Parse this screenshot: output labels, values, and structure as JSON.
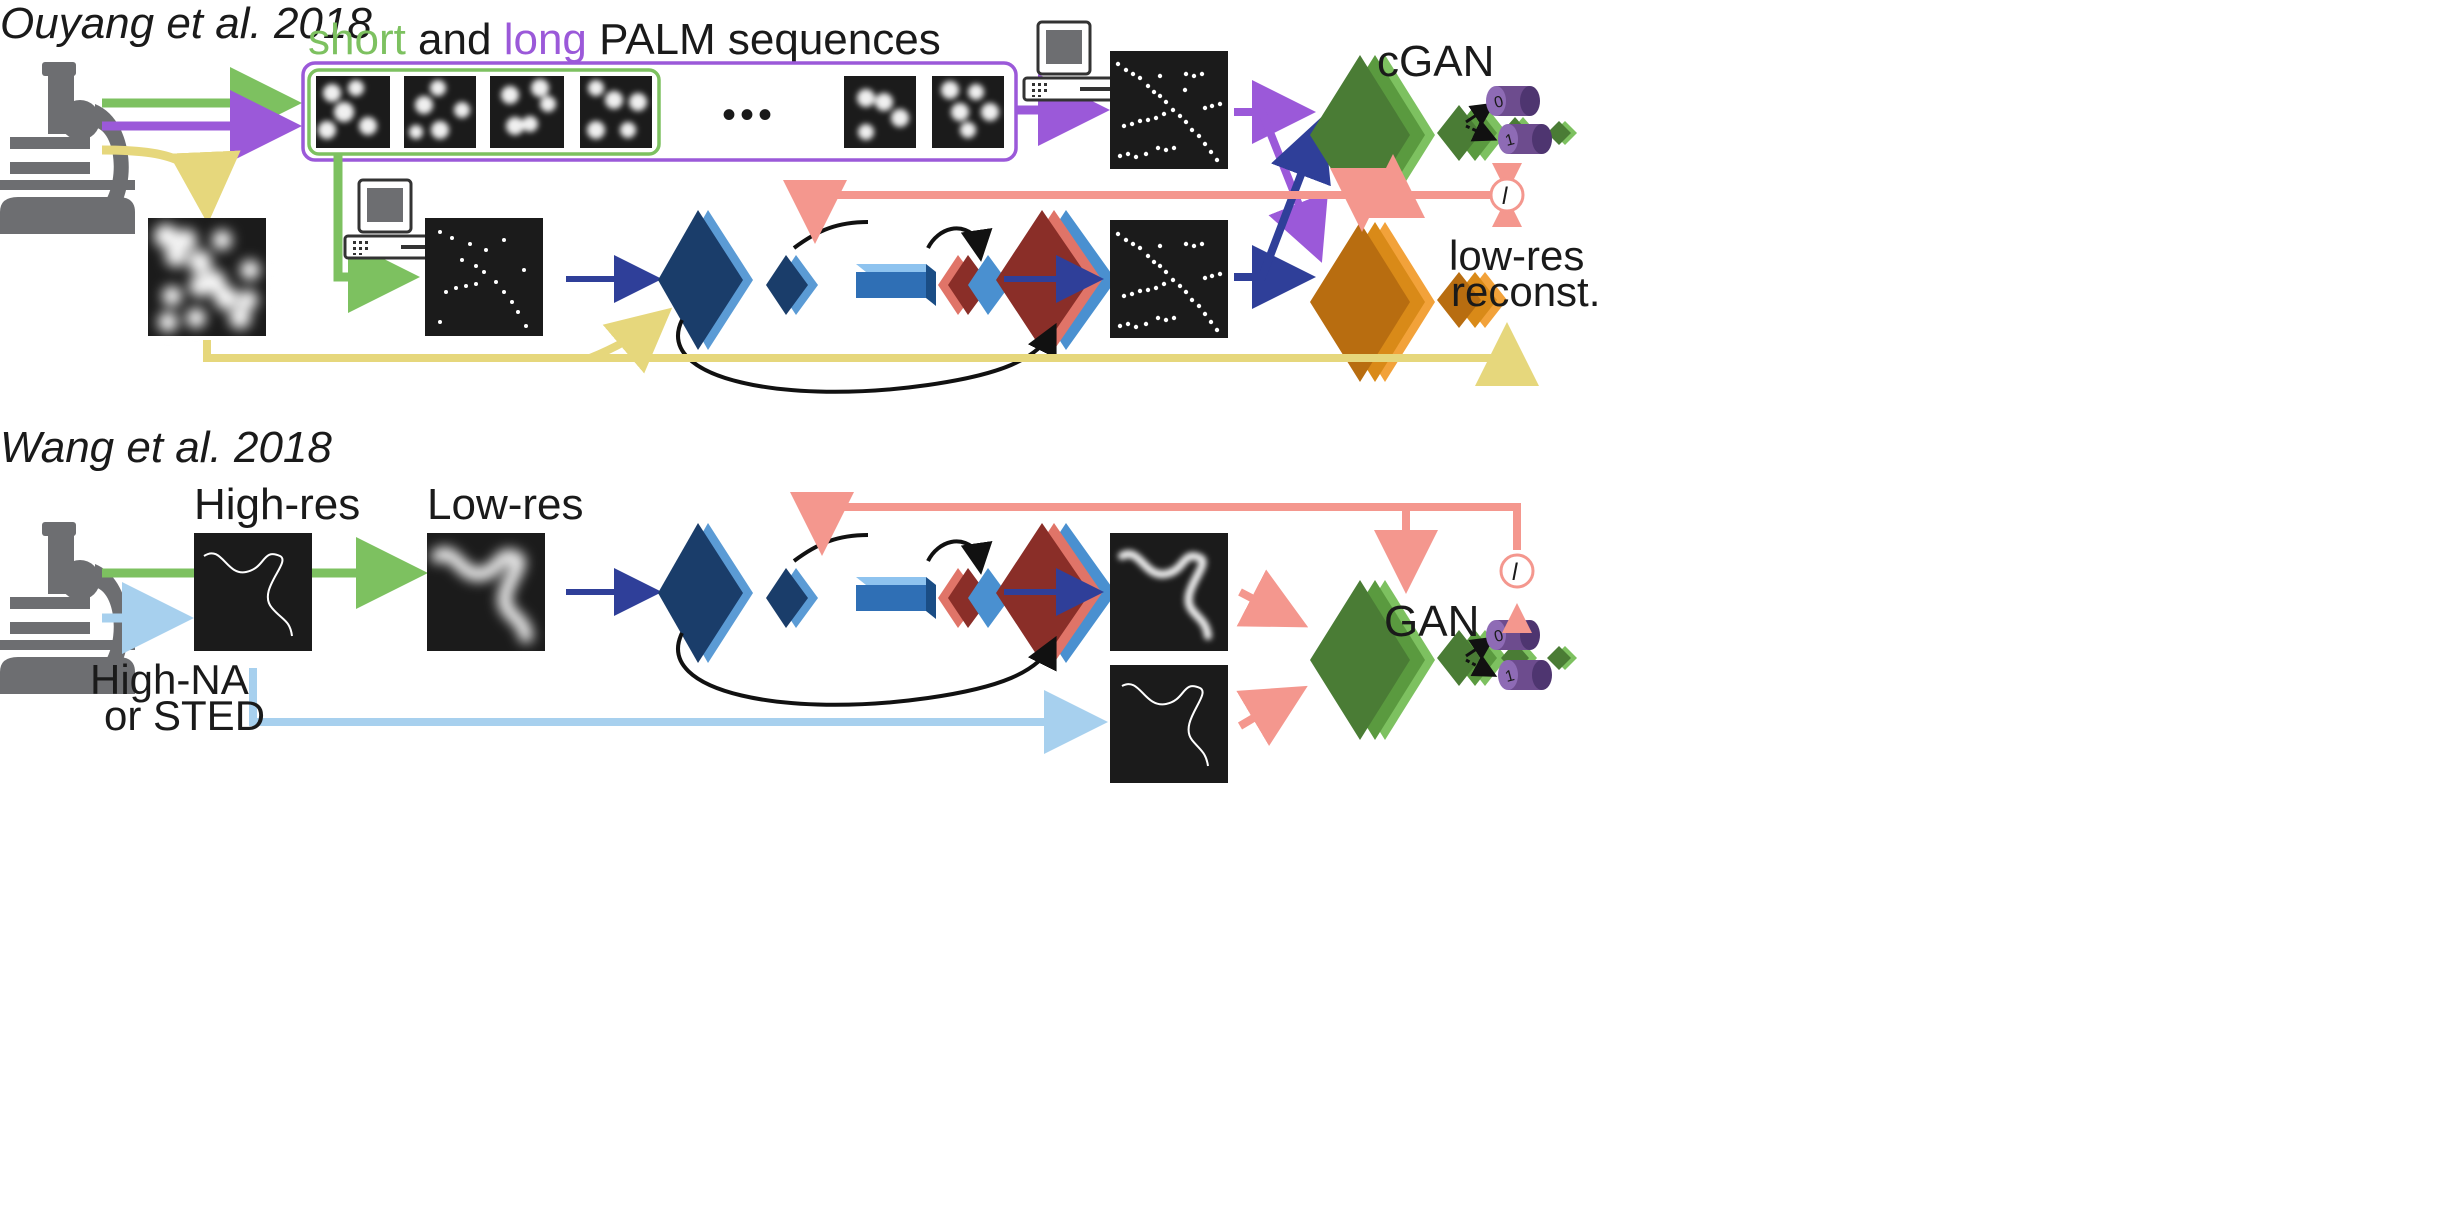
{
  "top_panel": {
    "title": "Ouyang et al. 2018",
    "header": {
      "short": "short",
      "and": " and ",
      "long": "long",
      "rest": " PALM sequences"
    },
    "ellipsis": "•••",
    "cgan_label": "cGAN",
    "recon_label_1": "low-res",
    "recon_label_2": "reconst.",
    "loss_symbol": "l"
  },
  "bottom_panel": {
    "title": "Wang et al. 2018",
    "highres_label": "High-res",
    "lowres_label": "Low-res",
    "gan_label": "GAN",
    "source_label_1": "High-NA",
    "source_label_2": "or STED",
    "loss_symbol": "l"
  },
  "discriminator_outputs": {
    "zero": "0",
    "one": "1"
  },
  "colors": {
    "green": "#7dc160",
    "purple": "#9b59d9",
    "yellow": "#e6d77c",
    "salmon": "#f4978e",
    "navy": "#2f3f99",
    "lightblue": "#a7d0ee",
    "gray": "#6d6e71",
    "source_text": "#7a96b4",
    "image_bg": "#1b1b1b"
  }
}
